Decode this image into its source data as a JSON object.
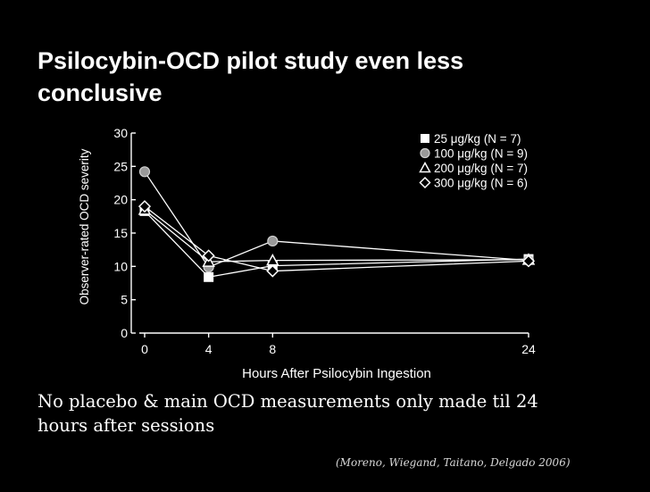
{
  "slide": {
    "title_line1": "Psilocybin-OCD pilot study even less",
    "title_line2": "conclusive",
    "caption_line1": "No placebo & main OCD measurements only made til 24",
    "caption_line2": "hours after sessions",
    "citation": "(Moreno, Wiegand, Taitano, Delgado 2006)"
  },
  "chart_data": {
    "type": "line",
    "title": "",
    "xlabel": "Hours After Psilocybin Ingestion",
    "ylabel": "Observer-rated OCD severity",
    "x": [
      0,
      4,
      8,
      24
    ],
    "x_ticks": [
      0,
      4,
      8,
      24
    ],
    "y_ticks": [
      0,
      5,
      10,
      15,
      20,
      25,
      30
    ],
    "xlim": [
      0,
      24
    ],
    "ylim": [
      0,
      30
    ],
    "legend_position": "top-right",
    "series": [
      {
        "name": "25 μg/kg (N = 7)",
        "marker": "square",
        "values": [
          18.3,
          8.4,
          10.1,
          11.1
        ]
      },
      {
        "name": "100 μg/kg (N = 9)",
        "marker": "circle",
        "values": [
          24.2,
          9.9,
          13.8,
          10.9
        ]
      },
      {
        "name": "200 μg/kg (N = 7)",
        "marker": "triangle",
        "values": [
          18.5,
          10.7,
          10.9,
          11.0
        ]
      },
      {
        "name": "300 μg/kg (N = 6)",
        "marker": "diamond",
        "values": [
          19.0,
          11.6,
          9.3,
          10.8
        ]
      }
    ]
  }
}
